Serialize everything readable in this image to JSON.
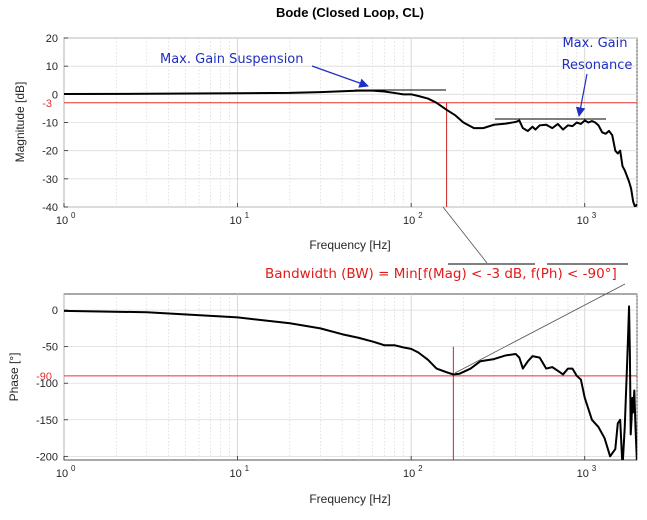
{
  "chart_data": [
    {
      "type": "line",
      "title": "Bode (Closed Loop, CL)",
      "xlabel": "Frequency [Hz]",
      "ylabel": "Magnitude [dB]",
      "xscale": "log",
      "xlim": [
        1,
        2000
      ],
      "ylim": [
        -40,
        20
      ],
      "grid": true,
      "xticks": [
        1,
        10,
        100,
        1000
      ],
      "xtick_labels": [
        {
          "base": "10",
          "exp": "0"
        },
        {
          "base": "10",
          "exp": "1"
        },
        {
          "base": "10",
          "exp": "2"
        },
        {
          "base": "10",
          "exp": "3"
        }
      ],
      "yticks": [
        20,
        10,
        0,
        -10,
        -20,
        -30,
        -40
      ],
      "ytick_labels": [
        "20",
        "10",
        "0",
        "-10",
        "-20",
        "-30",
        "-40"
      ],
      "reference_line": {
        "y": -3,
        "label": "-3",
        "color": "#e53030"
      },
      "bandwidth_marker": {
        "x": 160,
        "color": "#cc2222"
      },
      "series": [
        {
          "color": "#000000",
          "x": [
            1,
            3,
            10,
            20,
            30,
            40,
            50,
            60,
            70,
            80,
            90,
            100,
            110,
            125,
            140,
            160,
            180,
            200,
            230,
            260,
            300,
            350,
            400,
            420,
            440,
            470,
            500,
            520,
            550,
            600,
            650,
            700,
            750,
            800,
            850,
            900,
            950,
            1000,
            1050,
            1100,
            1150,
            1200,
            1260,
            1320,
            1380,
            1440,
            1500,
            1550,
            1600,
            1650,
            1700,
            1750,
            1800,
            1850,
            1900,
            1950,
            2000
          ],
          "y": [
            0.1,
            0.2,
            0.4,
            0.5,
            0.8,
            1.1,
            1.3,
            1.3,
            1.0,
            0.5,
            0.0,
            0.0,
            -0.6,
            -1.5,
            -3.0,
            -5.5,
            -7.5,
            -10.0,
            -12.0,
            -12.0,
            -10.8,
            -10.4,
            -9.8,
            -9.3,
            -12.0,
            -13.0,
            -11.5,
            -12.5,
            -11.0,
            -10.8,
            -12.0,
            -10.5,
            -12.5,
            -11.0,
            -11.3,
            -10.0,
            -10.5,
            -9.3,
            -10.0,
            -9.5,
            -10.0,
            -11.0,
            -13.5,
            -14.0,
            -13.0,
            -14.5,
            -20.0,
            -21.0,
            -20.0,
            -25.5,
            -27.0,
            -29.0,
            -31.0,
            -33.5,
            -38.0,
            -40.0,
            -39.0
          ]
        }
      ],
      "annotations": [
        {
          "text": "Max. Gain Suspension",
          "color": "#1f2fbf"
        },
        {
          "text": "Max. Gain",
          "color": "#1f2fbf"
        },
        {
          "text": "Resonance",
          "color": "#1f2fbf"
        }
      ]
    },
    {
      "type": "line",
      "title": "",
      "xlabel": "Frequency [Hz]",
      "ylabel": "Phase [°]",
      "xscale": "log",
      "xlim": [
        1,
        2000
      ],
      "ylim": [
        -205,
        22
      ],
      "grid": true,
      "xticks": [
        1,
        10,
        100,
        1000
      ],
      "xtick_labels": [
        {
          "base": "10",
          "exp": "0"
        },
        {
          "base": "10",
          "exp": "1"
        },
        {
          "base": "10",
          "exp": "2"
        },
        {
          "base": "10",
          "exp": "3"
        }
      ],
      "yticks": [
        0,
        -50,
        -100,
        -150,
        -200
      ],
      "ytick_labels": [
        "0",
        "-50",
        "-100",
        "-150",
        "-200"
      ],
      "reference_line": {
        "y": -90,
        "label": "-90",
        "color": "#e53030"
      },
      "bandwidth_marker": {
        "x": 175,
        "color": "#cc2222"
      },
      "series": [
        {
          "color": "#000000",
          "x": [
            1,
            3,
            10,
            20,
            30,
            40,
            50,
            60,
            70,
            80,
            90,
            100,
            110,
            125,
            140,
            160,
            175,
            190,
            220,
            250,
            300,
            350,
            400,
            420,
            440,
            470,
            500,
            550,
            600,
            650,
            700,
            750,
            800,
            850,
            900,
            950,
            1000,
            1100,
            1200,
            1300,
            1400,
            1500,
            1550,
            1600,
            1650,
            1700,
            1750,
            1780,
            1800,
            1820,
            1840,
            1860,
            1880,
            1900,
            1930,
            1960,
            2000
          ],
          "y": [
            -1,
            -3,
            -10,
            -18,
            -25,
            -33,
            -38,
            -43,
            -48,
            -48,
            -51,
            -53,
            -58,
            -68,
            -80,
            -85,
            -88,
            -87,
            -80,
            -70,
            -67,
            -62,
            -60,
            -65,
            -80,
            -70,
            -63,
            -65,
            -80,
            -78,
            -83,
            -88,
            -80,
            -80,
            -90,
            -95,
            -120,
            -150,
            -160,
            -175,
            -200,
            -190,
            -155,
            -150,
            -215,
            -160,
            -80,
            -30,
            5,
            -60,
            -170,
            -150,
            -120,
            -140,
            -110,
            -160,
            -210
          ]
        }
      ],
      "annotations": [
        {
          "text": "Bandwidth (BW) = Min[f(Mag) < -3 dB, f(Ph) < -90°]",
          "color": "#e01b1b"
        }
      ]
    }
  ]
}
